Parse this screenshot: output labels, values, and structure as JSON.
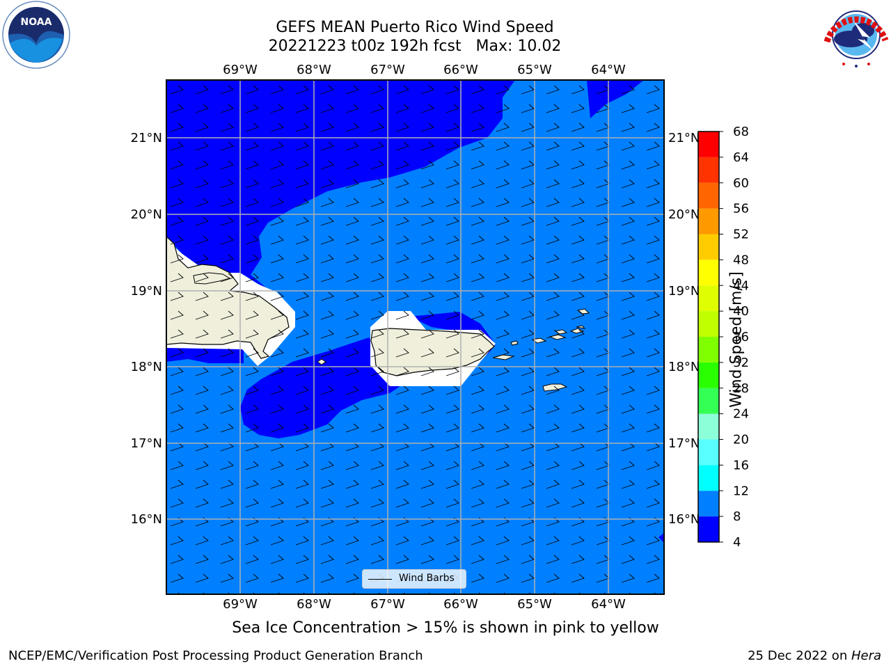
{
  "header": {
    "title": "GEFS MEAN Puerto Rico Wind Speed",
    "subtitle_line": "20221223 t00z 192h fcst   Max: 10.02"
  },
  "map": {
    "lon_ticks": [
      "69°W",
      "68°W",
      "67°W",
      "66°W",
      "65°W",
      "64°W"
    ],
    "lat_ticks": [
      "21°N",
      "20°N",
      "19°N",
      "18°N",
      "17°N",
      "16°N"
    ],
    "colors": {
      "ocean_low": "#0000ff",
      "ocean_mid": "#0080ff",
      "land": "#efefdc",
      "grid": "#b0b0b0"
    }
  },
  "colorbar": {
    "label": "Wind Speed [m/s]",
    "ticks": [
      "4",
      "8",
      "12",
      "16",
      "20",
      "24",
      "28",
      "32",
      "36",
      "40",
      "44",
      "48",
      "52",
      "56",
      "60",
      "64",
      "68"
    ],
    "colors": [
      "#0000ff",
      "#0080ff",
      "#00ffff",
      "#59ffff",
      "#8dffd8",
      "#33ff55",
      "#29ff00",
      "#7fff00",
      "#bfff00",
      "#dfff00",
      "#ffff00",
      "#ffcc00",
      "#ff9900",
      "#ff6600",
      "#ff3300",
      "#ff0000"
    ]
  },
  "legend": {
    "label": "Wind Barbs"
  },
  "note": "Sea Ice Concentration > 15% is shown in pink to yellow",
  "footer": {
    "left": "NCEP/EMC/Verification Post Processing Product Generation Branch",
    "right_date": "25 Dec 2022 on ",
    "right_host": "Hera"
  },
  "logos": {
    "noaa_text": "NOAA",
    "nws_text": "NATIONAL WEATHER SERVICE"
  }
}
